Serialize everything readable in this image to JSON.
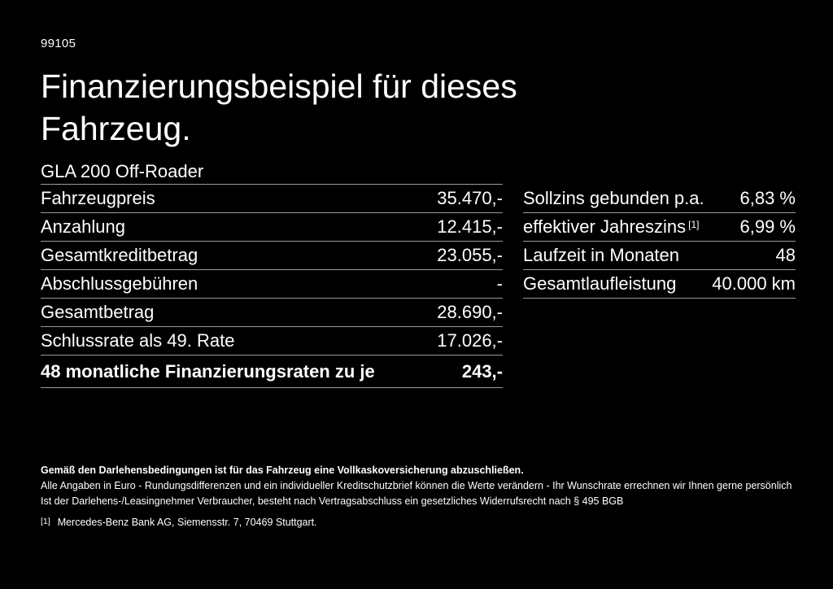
{
  "page": {
    "background_color": "#000000",
    "text_color": "#ffffff",
    "divider_color": "#9b9b9b",
    "doc_number": "99105"
  },
  "header": {
    "title_lines": [
      "Finanzierungsbeispiel für dieses",
      "Fahrzeug."
    ]
  },
  "vehicle": {
    "model": "GLA 200 Off-Roader"
  },
  "finance_table": {
    "rows": [
      {
        "label": "Fahrzeugpreis",
        "value": "35.470,-"
      },
      {
        "label": "Anzahlung",
        "value": "12.415,-"
      },
      {
        "label": "Gesamtkreditbetrag",
        "value": "23.055,-"
      },
      {
        "label": "Abschlussgebühren",
        "value": "-"
      },
      {
        "label": "Gesamtbetrag",
        "value": "28.690,-"
      },
      {
        "label": "Schlussrate als 49. Rate",
        "value": "17.026,-"
      },
      {
        "label": "48 monatliche Finanzierungsraten zu je",
        "value": "243,-",
        "bold": true
      }
    ]
  },
  "conditions_table": {
    "rows": [
      {
        "label": "Sollzins gebunden p.a.",
        "value": "6,83 %"
      },
      {
        "label": "effektiver Jahreszins",
        "label_sup": "[1]",
        "value": "6,99 %"
      },
      {
        "label": "Laufzeit in Monaten",
        "value": "48"
      },
      {
        "label": "Gesamtlaufleistung",
        "value": "40.000 km"
      }
    ]
  },
  "footer": {
    "insurance_note": "Gemäß den Darlehensbedingungen ist für das Fahrzeug eine Vollkaskoversicherung abzuschließen.",
    "disclaimer_1": "Alle Angaben in Euro - Rundungsdifferenzen und ein individueller Kreditschutzbrief können die Werte verändern - Ihr Wunschrate errechnen wir Ihnen gerne persönlich",
    "disclaimer_2": "Ist der Darlehens-/Leasingnehmer Verbraucher, besteht nach Vertragsabschluss ein gesetzliches Widerrufsrecht nach § 495 BGB",
    "footnote_marker": "[1]",
    "footnote_text": "Mercedes-Benz Bank AG, Siemensstr. 7, 70469 Stuttgart."
  }
}
